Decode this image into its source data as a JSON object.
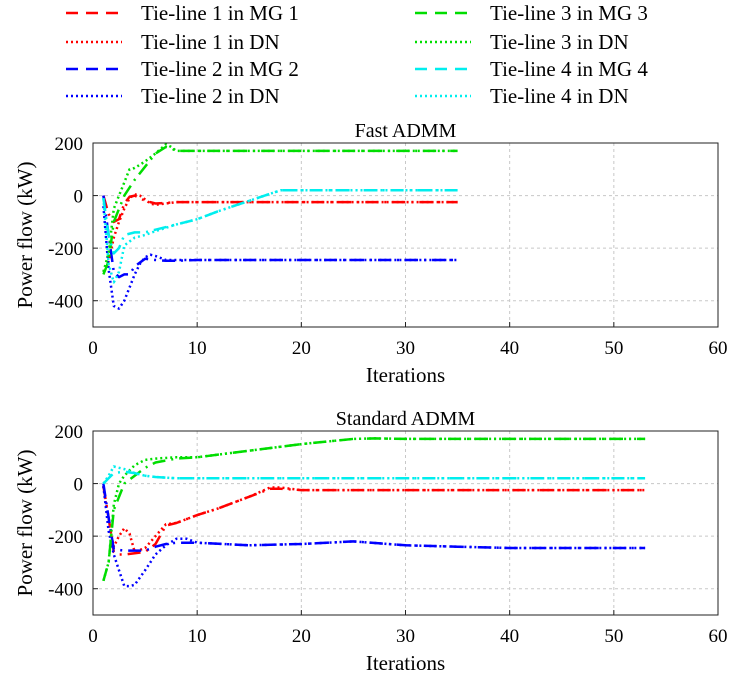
{
  "chart_data": [
    {
      "type": "line",
      "title": "Fast ADMM",
      "xlabel": "Iterations",
      "ylabel": "Power flow (kW)",
      "xlim": [
        0,
        60
      ],
      "ylim": [
        -500,
        200
      ],
      "xticks": [
        0,
        10,
        20,
        30,
        40,
        50,
        60
      ],
      "yticks": [
        200,
        0,
        -200,
        -400
      ],
      "grid": true,
      "series": [
        {
          "name": "Tie-line 1 in MG 1",
          "color": "#ff0000",
          "dash": "dash",
          "x": [
            1,
            1.5,
            2,
            2.5,
            3,
            3.5,
            4,
            5,
            6,
            7,
            8,
            10,
            15,
            20,
            25,
            30,
            35
          ],
          "y": [
            0,
            -70,
            -100,
            -90,
            -30,
            -5,
            0,
            -20,
            -30,
            -28,
            -25,
            -25,
            -25,
            -25,
            -25,
            -25,
            -25
          ]
        },
        {
          "name": "Tie-line 1 in DN",
          "color": "#ff0000",
          "dash": "dot",
          "x": [
            1,
            1.5,
            2,
            2.5,
            3,
            3.5,
            4,
            4.5,
            5,
            5.5,
            6,
            7,
            8,
            10,
            15,
            20,
            25,
            30,
            35
          ],
          "y": [
            -290,
            -250,
            -160,
            -100,
            -50,
            -10,
            5,
            0,
            -15,
            -30,
            -35,
            -30,
            -25,
            -25,
            -25,
            -25,
            -25,
            -25,
            -25
          ]
        },
        {
          "name": "Tie-line 2 in MG 2",
          "color": "#0000ff",
          "dash": "dash",
          "x": [
            1,
            1.5,
            2,
            2.5,
            3,
            3.5,
            4,
            5,
            6,
            7,
            8,
            10,
            15,
            20,
            25,
            30,
            35
          ],
          "y": [
            0,
            -150,
            -290,
            -310,
            -300,
            -300,
            -270,
            -240,
            -245,
            -248,
            -248,
            -245,
            -245,
            -245,
            -245,
            -245,
            -245
          ]
        },
        {
          "name": "Tie-line 2 in DN",
          "color": "#0000ff",
          "dash": "dot",
          "x": [
            1,
            1.5,
            2,
            2.5,
            3,
            3.5,
            4,
            4.5,
            5,
            5.5,
            6,
            7,
            8,
            10,
            15,
            20,
            25,
            30,
            35
          ],
          "y": [
            -40,
            -280,
            -420,
            -430,
            -400,
            -350,
            -300,
            -260,
            -235,
            -225,
            -230,
            -245,
            -245,
            -245,
            -245,
            -245,
            -245,
            -245,
            -245
          ]
        },
        {
          "name": "Tie-line 3 in MG 3",
          "color": "#00dd00",
          "dash": "dash",
          "x": [
            1,
            1.5,
            2,
            3,
            4,
            5,
            6,
            7,
            7.5,
            8,
            10,
            15,
            20,
            25,
            30,
            35
          ],
          "y": [
            -300,
            -250,
            -100,
            0,
            60,
            110,
            160,
            185,
            180,
            170,
            170,
            170,
            170,
            170,
            170,
            170
          ]
        },
        {
          "name": "Tie-line 3 in DN",
          "color": "#00dd00",
          "dash": "dot",
          "x": [
            1,
            1.5,
            2,
            2.5,
            3,
            3.5,
            4,
            5,
            6,
            7,
            7.5,
            8,
            10,
            15,
            20,
            25,
            30,
            35
          ],
          "y": [
            -290,
            -220,
            -50,
            0,
            50,
            100,
            105,
            130,
            160,
            195,
            185,
            170,
            170,
            170,
            170,
            170,
            170,
            170
          ]
        },
        {
          "name": "Tie-line 4 in MG 4",
          "color": "#00eeee",
          "dash": "dash",
          "x": [
            1,
            1.5,
            2,
            2.5,
            3,
            4,
            5,
            6,
            8,
            10,
            12,
            15,
            18,
            19,
            20,
            25,
            30,
            35
          ],
          "y": [
            -10,
            -150,
            -220,
            -200,
            -150,
            -140,
            -140,
            -130,
            -110,
            -90,
            -60,
            -20,
            20,
            20,
            20,
            20,
            20,
            20
          ]
        },
        {
          "name": "Tie-line 4 in DN",
          "color": "#00eeee",
          "dash": "dot",
          "x": [
            1,
            1.5,
            2,
            2.5,
            3,
            4,
            5,
            6,
            8,
            10,
            12,
            15,
            18,
            19,
            20,
            25,
            30,
            35
          ],
          "y": [
            -10,
            -260,
            -330,
            -290,
            -190,
            -160,
            -150,
            -135,
            -110,
            -90,
            -60,
            -20,
            20,
            20,
            20,
            20,
            20,
            20
          ]
        }
      ]
    },
    {
      "type": "line",
      "title": "Standard ADMM",
      "xlabel": "Iterations",
      "ylabel": "Power flow (kW)",
      "xlim": [
        0,
        60
      ],
      "ylim": [
        -500,
        200
      ],
      "xticks": [
        0,
        10,
        20,
        30,
        40,
        50,
        60
      ],
      "yticks": [
        200,
        0,
        -200,
        -400
      ],
      "grid": true,
      "series": [
        {
          "name": "Tie-line 1 in MG 1",
          "color": "#ff0000",
          "dash": "dash",
          "x": [
            1,
            1.5,
            2,
            2.5,
            3,
            4,
            5,
            6,
            7,
            8,
            10,
            12,
            15,
            17,
            18,
            20,
            25,
            30,
            35,
            40,
            45,
            50,
            53
          ],
          "y": [
            -10,
            -130,
            -260,
            -270,
            -270,
            -265,
            -260,
            -230,
            -160,
            -150,
            -120,
            -95,
            -50,
            -20,
            -20,
            -25,
            -25,
            -25,
            -25,
            -25,
            -25,
            -25,
            -25
          ]
        },
        {
          "name": "Tie-line 1 in DN",
          "color": "#ff0000",
          "dash": "dot",
          "x": [
            1,
            1.5,
            2,
            2.5,
            3,
            3.5,
            4,
            5,
            6,
            7,
            8,
            10,
            12,
            15,
            17,
            18,
            20,
            25,
            30,
            35,
            40,
            45,
            50,
            53
          ],
          "y": [
            -10,
            -150,
            -240,
            -200,
            -170,
            -190,
            -260,
            -245,
            -200,
            -155,
            -150,
            -120,
            -95,
            -50,
            -15,
            -15,
            -25,
            -25,
            -25,
            -25,
            -25,
            -25,
            -25,
            -25
          ]
        },
        {
          "name": "Tie-line 2 in MG 2",
          "color": "#0000ff",
          "dash": "dash",
          "x": [
            1,
            1.5,
            2,
            3,
            4,
            5,
            6,
            7,
            8,
            10,
            15,
            20,
            25,
            30,
            35,
            40,
            45,
            50,
            53
          ],
          "y": [
            0,
            -130,
            -250,
            -255,
            -255,
            -255,
            -240,
            -230,
            -225,
            -225,
            -235,
            -230,
            -220,
            -235,
            -240,
            -245,
            -245,
            -245,
            -245
          ]
        },
        {
          "name": "Tie-line 2 in DN",
          "color": "#0000ff",
          "dash": "dot",
          "x": [
            1,
            1.5,
            2,
            2.5,
            3,
            3.5,
            4,
            5,
            6,
            7,
            8,
            9,
            10,
            15,
            20,
            25,
            30,
            35,
            40,
            45,
            50,
            53
          ],
          "y": [
            -10,
            -180,
            -270,
            -330,
            -390,
            -390,
            -385,
            -330,
            -270,
            -235,
            -210,
            -210,
            -225,
            -235,
            -230,
            -220,
            -235,
            -240,
            -245,
            -245,
            -245,
            -245
          ]
        },
        {
          "name": "Tie-line 3 in MG 3",
          "color": "#00dd00",
          "dash": "dash",
          "x": [
            1,
            1.5,
            2,
            3,
            4,
            5,
            6,
            8,
            10,
            15,
            20,
            25,
            27,
            30,
            35,
            40,
            45,
            50,
            53
          ],
          "y": [
            -370,
            -300,
            -100,
            0,
            30,
            60,
            80,
            95,
            100,
            125,
            150,
            170,
            172,
            170,
            170,
            170,
            170,
            170,
            170
          ]
        },
        {
          "name": "Tie-line 3 in DN",
          "color": "#00dd00",
          "dash": "dot",
          "x": [
            1,
            1.5,
            2,
            2.5,
            3,
            4,
            5,
            6,
            8,
            10,
            15,
            20,
            25,
            27,
            30,
            35,
            40,
            45,
            50,
            53
          ],
          "y": [
            -370,
            -300,
            -80,
            0,
            30,
            70,
            90,
            95,
            100,
            100,
            125,
            150,
            170,
            172,
            170,
            170,
            170,
            170,
            170,
            170
          ]
        },
        {
          "name": "Tie-line 4 in MG 4",
          "color": "#00eeee",
          "dash": "dash",
          "x": [
            1,
            1.5,
            2,
            3,
            4,
            5,
            6,
            8,
            10,
            15,
            20,
            25,
            30,
            35,
            40,
            45,
            50,
            53
          ],
          "y": [
            0,
            20,
            40,
            45,
            40,
            30,
            25,
            20,
            20,
            20,
            20,
            20,
            20,
            20,
            20,
            20,
            20,
            20
          ]
        },
        {
          "name": "Tie-line 4 in DN",
          "color": "#00eeee",
          "dash": "dot",
          "x": [
            1,
            1.5,
            2,
            2.5,
            3,
            4,
            5,
            6,
            8,
            10,
            15,
            20,
            25,
            30,
            35,
            40,
            45,
            50,
            53
          ],
          "y": [
            0,
            30,
            65,
            60,
            55,
            40,
            30,
            25,
            20,
            20,
            20,
            20,
            20,
            20,
            20,
            20,
            20,
            20,
            20
          ]
        }
      ]
    }
  ]
}
